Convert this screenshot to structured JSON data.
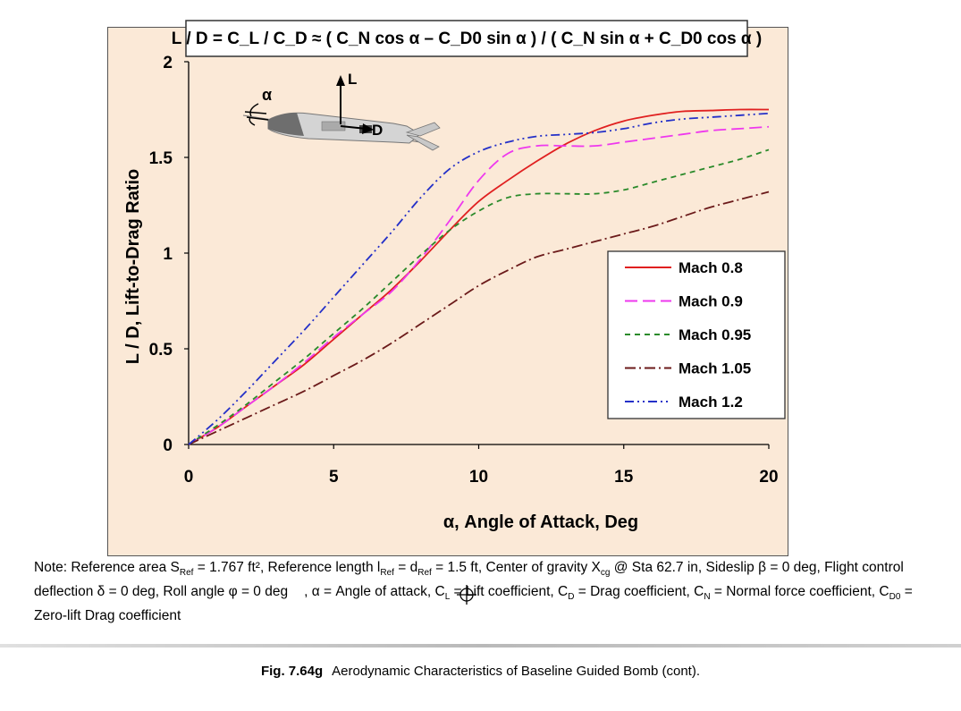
{
  "chart_data": {
    "type": "line",
    "formula": "L / D = C_L / C_D ≈ ( C_N cos α – C_D0 sin α ) / ( C_N sin α + C_D0 cos α )",
    "xlabel": "α, Angle of Attack, Deg",
    "ylabel": "L / D, Lift-to-Drag Ratio",
    "xlim": [
      0,
      20
    ],
    "ylim": [
      0,
      2
    ],
    "xticks": [
      0,
      5,
      10,
      15,
      20
    ],
    "yticks": [
      0,
      0.5,
      1,
      1.5,
      2
    ],
    "xtick_labels": [
      "0",
      "5",
      "10",
      "15",
      "20"
    ],
    "ytick_labels": [
      "0",
      "0.5",
      "1",
      "1.5",
      "2"
    ],
    "legend_position": "right",
    "series": [
      {
        "name": "Mach 0.8",
        "color": "#e02020",
        "dash": "solid",
        "x": [
          0,
          1,
          2,
          3,
          4,
          5,
          6,
          7,
          8,
          9,
          10,
          11,
          12,
          13,
          14,
          15,
          16,
          17,
          18,
          19,
          20
        ],
        "y": [
          0,
          0.09,
          0.2,
          0.31,
          0.42,
          0.55,
          0.68,
          0.81,
          0.96,
          1.12,
          1.27,
          1.38,
          1.48,
          1.57,
          1.64,
          1.69,
          1.72,
          1.74,
          1.745,
          1.75,
          1.75
        ]
      },
      {
        "name": "Mach 0.9",
        "color": "#ee38ee",
        "dash": "long-dash",
        "x": [
          0,
          1,
          2,
          3,
          4,
          5,
          6,
          7,
          8,
          9,
          10,
          11,
          12,
          13,
          14,
          15,
          16,
          17,
          18,
          19,
          20
        ],
        "y": [
          0,
          0.09,
          0.2,
          0.31,
          0.43,
          0.56,
          0.68,
          0.8,
          0.97,
          1.17,
          1.38,
          1.52,
          1.56,
          1.56,
          1.56,
          1.58,
          1.6,
          1.62,
          1.64,
          1.65,
          1.66
        ]
      },
      {
        "name": "Mach 0.95",
        "color": "#2a8a2a",
        "dash": "short-dash",
        "x": [
          0,
          1,
          2,
          3,
          4,
          5,
          6,
          7,
          8,
          9,
          10,
          11,
          12,
          13,
          14,
          15,
          16,
          17,
          18,
          19,
          20
        ],
        "y": [
          0,
          0.1,
          0.21,
          0.33,
          0.45,
          0.58,
          0.71,
          0.85,
          0.99,
          1.12,
          1.22,
          1.29,
          1.31,
          1.31,
          1.31,
          1.33,
          1.37,
          1.41,
          1.45,
          1.49,
          1.54
        ]
      },
      {
        "name": "Mach 1.05",
        "color": "#6b1a1a",
        "dash": "dash-dot",
        "x": [
          0,
          1,
          2,
          3,
          4,
          5,
          6,
          7,
          8,
          9,
          10,
          11,
          12,
          13,
          14,
          15,
          16,
          17,
          18,
          19,
          20
        ],
        "y": [
          0,
          0.07,
          0.14,
          0.21,
          0.28,
          0.36,
          0.44,
          0.53,
          0.63,
          0.73,
          0.83,
          0.91,
          0.98,
          1.02,
          1.06,
          1.1,
          1.14,
          1.19,
          1.24,
          1.28,
          1.32
        ]
      },
      {
        "name": "Mach 1.2",
        "color": "#2430c8",
        "dash": "dash-dot-dot",
        "x": [
          0,
          1,
          2,
          3,
          4,
          5,
          6,
          7,
          8,
          9,
          10,
          11,
          12,
          13,
          14,
          15,
          16,
          17,
          18,
          19,
          20
        ],
        "y": [
          0,
          0.13,
          0.28,
          0.44,
          0.6,
          0.77,
          0.94,
          1.11,
          1.29,
          1.44,
          1.53,
          1.58,
          1.61,
          1.62,
          1.63,
          1.65,
          1.68,
          1.7,
          1.71,
          1.72,
          1.73
        ]
      }
    ],
    "annotations": {
      "alpha": "α",
      "lift": "L",
      "drag": "D"
    }
  },
  "note": {
    "p1": "Note: Reference area S",
    "s1": "Ref",
    "p2": " = 1.767 ft², Reference length l",
    "s2": "Ref",
    "p3": " = d",
    "s3": "Ref",
    "p4": " = 1.5 ft, Center of gravity X",
    "s4": "cg",
    "p5": " @ Sta 62.7 in, Sideslip β = 0 deg, Flight control deflection δ = 0 deg, Roll angle φ = 0 deg",
    "p6": ", α = Angle of attack, C",
    "s6": "L",
    "p7": " = Lift coefficient, C",
    "s7": "D",
    "p8": " = Drag coefficient, C",
    "s8": "N",
    "p9": " = Normal force coefficient, C",
    "s9": "D0",
    "p10": " = Zero-lift Drag coefficient"
  },
  "caption": {
    "fig": "Fig. 7.64g",
    "text": "Aerodynamic Characteristics of Baseline Guided Bomb (cont)."
  }
}
